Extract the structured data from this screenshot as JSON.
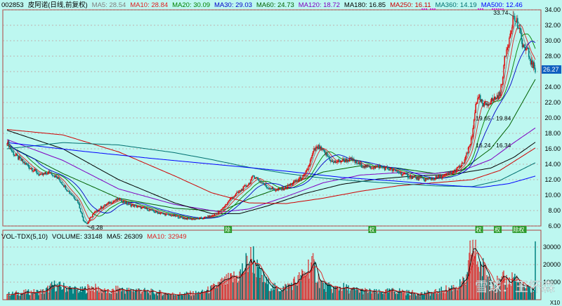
{
  "header": {
    "code": "002853",
    "name": "皮阿诺(日线,前复权)",
    "ma": [
      {
        "label": "MA5: 28.54",
        "color": "#7f7f7f"
      },
      {
        "label": "MA10: 28.84",
        "color": "#e02020"
      },
      {
        "label": "MA20: 30.09",
        "color": "#008000"
      },
      {
        "label": "MA30: 29.03",
        "color": "#0000c8"
      },
      {
        "label": "MA60: 24.73",
        "color": "#006000"
      },
      {
        "label": "MA120: 18.72",
        "color": "#8000c0"
      },
      {
        "label": "MA180: 16.85",
        "color": "#000000"
      },
      {
        "label": "MA250: 16.11",
        "color": "#d00000"
      },
      {
        "label": "MA360: 14.19",
        "color": "#007070"
      },
      {
        "label": "MA500: 12.46",
        "color": "#0000ff"
      }
    ]
  },
  "vol_header": {
    "items": [
      {
        "label": "VOL-TDX(5,10)",
        "color": "#000000"
      },
      {
        "label": "VOLUME: 33148",
        "color": "#000000"
      },
      {
        "label": "MA5: 26309",
        "color": "#000000"
      },
      {
        "label": "MA10: 32949",
        "color": "#e02020"
      }
    ]
  },
  "annotations": {
    "high": "33.74",
    "low": "6.28",
    "range1": "19.65 - 19.84",
    "range2": "16.24 - 16.34",
    "last_price": "26.27",
    "markers": [
      "除",
      "权",
      "权",
      "权",
      "除权"
    ]
  },
  "multiplier": "X10",
  "watermark": "雪球：王怀森",
  "chart_data": [
    {
      "type": "candlestick",
      "ylim": [
        6,
        34
      ],
      "y_ticks": [
        "6.00",
        "8.00",
        "10.00",
        "12.00",
        "14.00",
        "16.00",
        "18.00",
        "20.00",
        "22.00",
        "24.00",
        "26.00",
        "28.00",
        "30.00",
        "32.00",
        "34.00"
      ],
      "close_path": [
        [
          0,
          17.0
        ],
        [
          6,
          15.5
        ],
        [
          12,
          14.8
        ],
        [
          20,
          14.0
        ],
        [
          28,
          13.3
        ],
        [
          36,
          12.5
        ],
        [
          46,
          13.0
        ],
        [
          56,
          12.0
        ],
        [
          66,
          10.5
        ],
        [
          76,
          9.2
        ],
        [
          82,
          6.8
        ],
        [
          86,
          6.28
        ],
        [
          92,
          7.5
        ],
        [
          100,
          8.3
        ],
        [
          110,
          9.0
        ],
        [
          120,
          9.5
        ],
        [
          130,
          8.8
        ],
        [
          140,
          8.5
        ],
        [
          150,
          8.2
        ],
        [
          160,
          7.8
        ],
        [
          170,
          7.5
        ],
        [
          180,
          7.3
        ],
        [
          190,
          7.0
        ],
        [
          200,
          6.9
        ],
        [
          210,
          7.0
        ],
        [
          220,
          7.3
        ],
        [
          230,
          8.0
        ],
        [
          240,
          9.5
        ],
        [
          250,
          10.5
        ],
        [
          260,
          11.5
        ],
        [
          265,
          12.5
        ],
        [
          270,
          12.0
        ],
        [
          280,
          11.0
        ],
        [
          290,
          10.6
        ],
        [
          300,
          11.0
        ],
        [
          310,
          11.8
        ],
        [
          320,
          12.5
        ],
        [
          325,
          14.0
        ],
        [
          330,
          15.8
        ],
        [
          335,
          16.2
        ],
        [
          340,
          15.6
        ],
        [
          345,
          15.0
        ],
        [
          350,
          14.2
        ],
        [
          360,
          14.5
        ],
        [
          370,
          14.6
        ],
        [
          380,
          13.9
        ],
        [
          390,
          13.6
        ],
        [
          400,
          13.7
        ],
        [
          410,
          13.4
        ],
        [
          420,
          13.0
        ],
        [
          430,
          12.5
        ],
        [
          440,
          12.2
        ],
        [
          450,
          12.0
        ],
        [
          460,
          12.2
        ],
        [
          470,
          12.5
        ],
        [
          480,
          13.0
        ],
        [
          490,
          14.0
        ],
        [
          495,
          15.5
        ],
        [
          500,
          17.5
        ],
        [
          504,
          22.0
        ],
        [
          508,
          22.5
        ],
        [
          512,
          21.5
        ],
        [
          518,
          22.0
        ],
        [
          524,
          22.5
        ],
        [
          530,
          23.0
        ],
        [
          535,
          27.5
        ],
        [
          540,
          30.5
        ],
        [
          544,
          33.0
        ],
        [
          548,
          32.5
        ],
        [
          552,
          30.5
        ],
        [
          556,
          29.0
        ],
        [
          560,
          28.5
        ],
        [
          564,
          27.0
        ],
        [
          568,
          26.27
        ]
      ],
      "moving_averages": [
        {
          "name": "MA60",
          "color": "#006000",
          "points": [
            [
              0,
              16.5
            ],
            [
              60,
              12.8
            ],
            [
              120,
              9.6
            ],
            [
              180,
              8.3
            ],
            [
              230,
              7.9
            ],
            [
              260,
              9.5
            ],
            [
              300,
              11.2
            ],
            [
              340,
              13.0
            ],
            [
              380,
              13.8
            ],
            [
              420,
              13.5
            ],
            [
              460,
              12.8
            ],
            [
              490,
              13.3
            ],
            [
              520,
              16.0
            ],
            [
              540,
              19.0
            ],
            [
              568,
              25.0
            ]
          ]
        },
        {
          "name": "MA120",
          "color": "#8000c0",
          "points": [
            [
              0,
              17.2
            ],
            [
              60,
              14.5
            ],
            [
              120,
              10.8
            ],
            [
              180,
              8.8
            ],
            [
              230,
              7.8
            ],
            [
              260,
              8.2
            ],
            [
              300,
              9.8
            ],
            [
              340,
              11.6
            ],
            [
              380,
              12.6
            ],
            [
              420,
              12.9
            ],
            [
              460,
              12.8
            ],
            [
              490,
              13.2
            ],
            [
              520,
              14.6
            ],
            [
              545,
              16.8
            ],
            [
              568,
              18.7
            ]
          ]
        },
        {
          "name": "MA180",
          "color": "#000000",
          "points": [
            [
              0,
              18.4
            ],
            [
              60,
              16.0
            ],
            [
              120,
              12.0
            ],
            [
              180,
              9.0
            ],
            [
              220,
              7.6
            ],
            [
              250,
              7.6
            ],
            [
              280,
              8.6
            ],
            [
              320,
              10.2
            ],
            [
              360,
              11.4
            ],
            [
              400,
              12.1
            ],
            [
              440,
              12.5
            ],
            [
              480,
              12.7
            ],
            [
              520,
              13.5
            ],
            [
              545,
              14.9
            ],
            [
              568,
              16.85
            ]
          ]
        },
        {
          "name": "MA250",
          "color": "#d00000",
          "points": [
            [
              0,
              18.5
            ],
            [
              60,
              17.8
            ],
            [
              120,
              15.6
            ],
            [
              180,
              12.5
            ],
            [
              220,
              10.3
            ],
            [
              260,
              9.0
            ],
            [
              300,
              8.9
            ],
            [
              340,
              9.6
            ],
            [
              380,
              10.5
            ],
            [
              420,
              11.2
            ],
            [
              460,
              11.6
            ],
            [
              500,
              12.0
            ],
            [
              530,
              13.2
            ],
            [
              568,
              16.11
            ]
          ]
        },
        {
          "name": "MA360",
          "color": "#007070",
          "points": [
            [
              0,
              16.0
            ],
            [
              60,
              16.8
            ],
            [
              120,
              16.5
            ],
            [
              180,
              15.5
            ],
            [
              220,
              14.6
            ],
            [
              260,
              13.6
            ],
            [
              300,
              12.8
            ],
            [
              340,
              12.2
            ],
            [
              380,
              11.8
            ],
            [
              420,
              11.5
            ],
            [
              460,
              11.2
            ],
            [
              500,
              11.1
            ],
            [
              530,
              11.9
            ],
            [
              568,
              14.19
            ]
          ]
        },
        {
          "name": "MA500",
          "color": "#0000ff",
          "points": [
            [
              0,
              16.8
            ],
            [
              80,
              15.7
            ],
            [
              160,
              14.7
            ],
            [
              240,
              13.8
            ],
            [
              300,
              13.1
            ],
            [
              360,
              12.3
            ],
            [
              420,
              11.8
            ],
            [
              470,
              11.3
            ],
            [
              510,
              11.0
            ],
            [
              540,
              11.5
            ],
            [
              568,
              12.46
            ]
          ]
        }
      ]
    },
    {
      "type": "bar",
      "ylim": [
        0,
        34000
      ],
      "y_ticks": [
        "10000",
        "20000",
        "30000"
      ],
      "volume_shape": [
        [
          0,
          3000
        ],
        [
          20,
          4000
        ],
        [
          40,
          4500
        ],
        [
          50,
          8000
        ],
        [
          60,
          7000
        ],
        [
          70,
          6000
        ],
        [
          80,
          5000
        ],
        [
          90,
          7000
        ],
        [
          100,
          5500
        ],
        [
          110,
          4000
        ],
        [
          120,
          6000
        ],
        [
          130,
          5000
        ],
        [
          140,
          5500
        ],
        [
          150,
          4500
        ],
        [
          160,
          4000
        ],
        [
          170,
          3500
        ],
        [
          180,
          3000
        ],
        [
          190,
          3200
        ],
        [
          200,
          3500
        ],
        [
          210,
          4000
        ],
        [
          220,
          6000
        ],
        [
          230,
          9000
        ],
        [
          240,
          11000
        ],
        [
          250,
          14000
        ],
        [
          255,
          18000
        ],
        [
          260,
          22000
        ],
        [
          265,
          24000
        ],
        [
          270,
          15000
        ],
        [
          280,
          9000
        ],
        [
          290,
          6000
        ],
        [
          300,
          7000
        ],
        [
          310,
          10000
        ],
        [
          320,
          14000
        ],
        [
          325,
          20000
        ],
        [
          330,
          18000
        ],
        [
          335,
          12000
        ],
        [
          340,
          8000
        ],
        [
          350,
          6000
        ],
        [
          360,
          7000
        ],
        [
          370,
          5500
        ],
        [
          380,
          5000
        ],
        [
          390,
          4500
        ],
        [
          400,
          4000
        ],
        [
          410,
          4500
        ],
        [
          420,
          5000
        ],
        [
          430,
          4000
        ],
        [
          440,
          3500
        ],
        [
          450,
          3500
        ],
        [
          460,
          4000
        ],
        [
          470,
          5500
        ],
        [
          480,
          7000
        ],
        [
          490,
          9000
        ],
        [
          495,
          12000
        ],
        [
          500,
          33148
        ],
        [
          503,
          26000
        ],
        [
          508,
          20000
        ],
        [
          515,
          15000
        ],
        [
          520,
          11000
        ],
        [
          530,
          9000
        ],
        [
          535,
          12000
        ],
        [
          540,
          10000
        ],
        [
          545,
          14000
        ],
        [
          550,
          9000
        ],
        [
          555,
          7000
        ],
        [
          560,
          6000
        ],
        [
          568,
          5000
        ]
      ]
    }
  ]
}
